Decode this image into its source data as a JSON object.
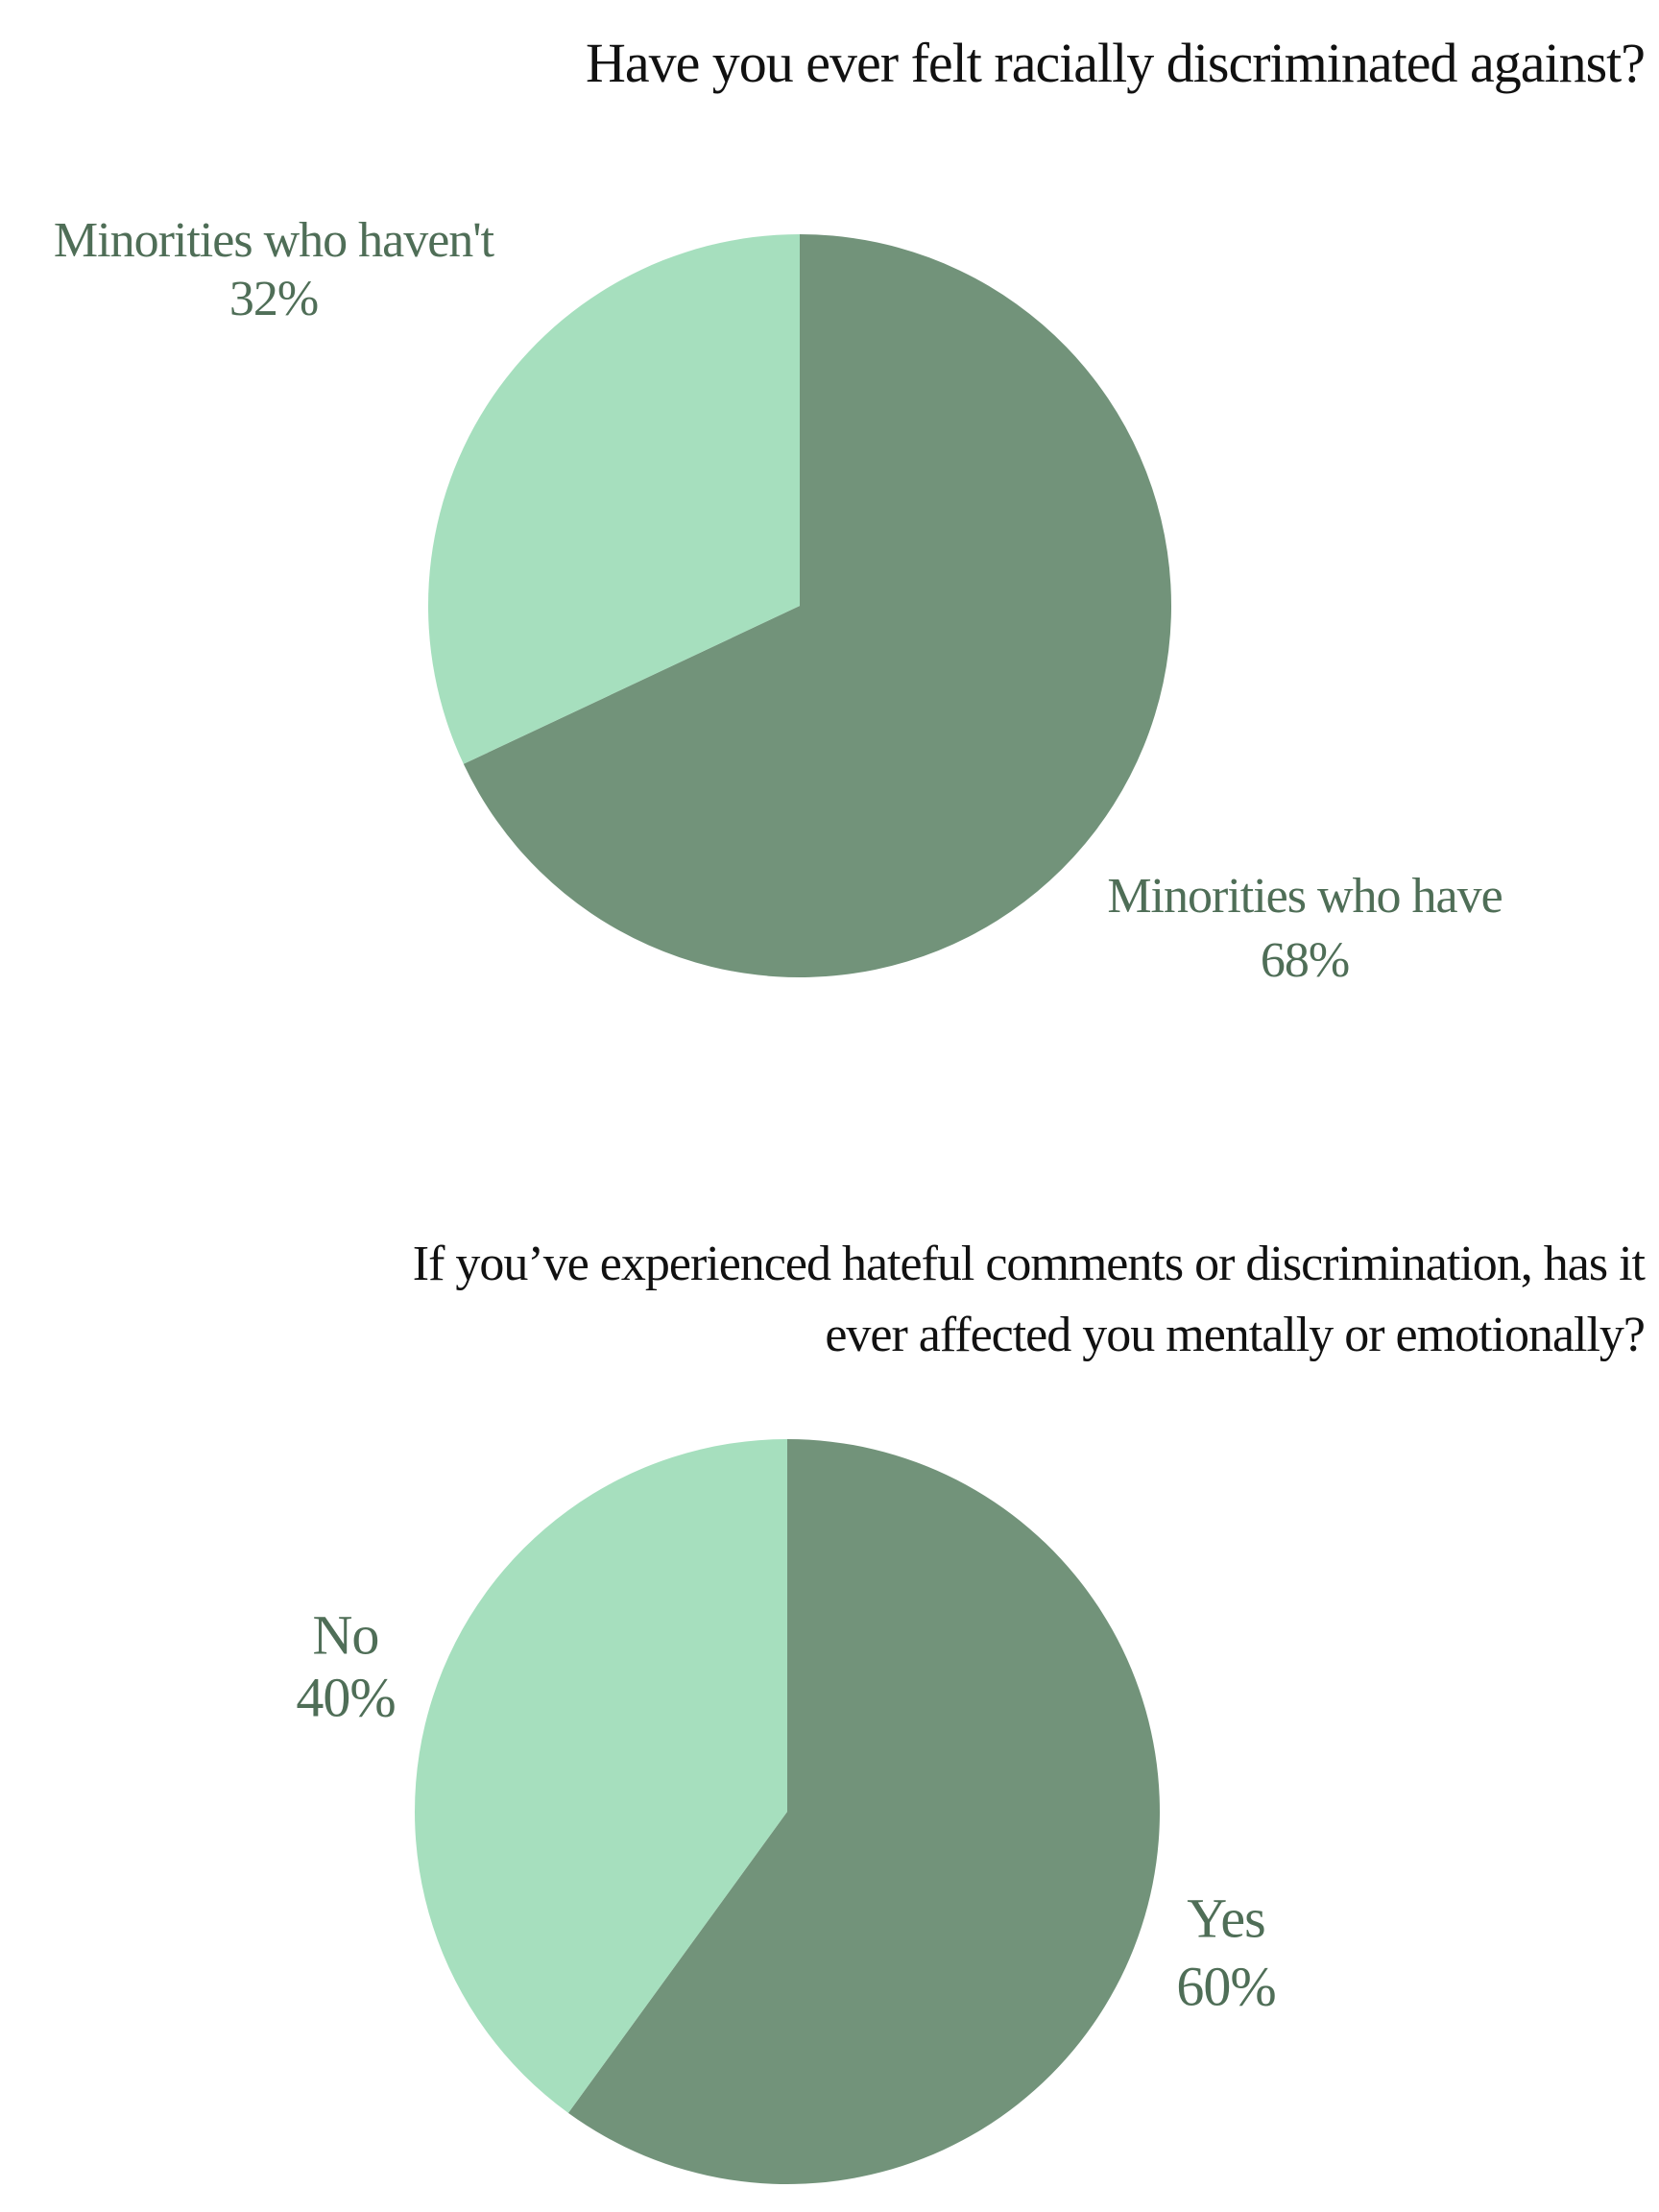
{
  "chart_data": [
    {
      "type": "pie",
      "title": "Have you ever felt racially discriminated against?",
      "categories": [
        "Minorities who have",
        "Minorities who haven't"
      ],
      "values": [
        68,
        32
      ],
      "value_labels": [
        "68%",
        "32%"
      ],
      "colors": [
        "#72937a",
        "#a6dfbe"
      ]
    },
    {
      "type": "pie",
      "title": "If you’ve experienced hateful comments or discrimination, has it ever affected you mentally or emotionally?",
      "categories": [
        "Yes",
        "No"
      ],
      "values": [
        60,
        40
      ],
      "value_labels": [
        "60%",
        "40%"
      ],
      "colors": [
        "#72937a",
        "#a6dfbe"
      ]
    }
  ]
}
